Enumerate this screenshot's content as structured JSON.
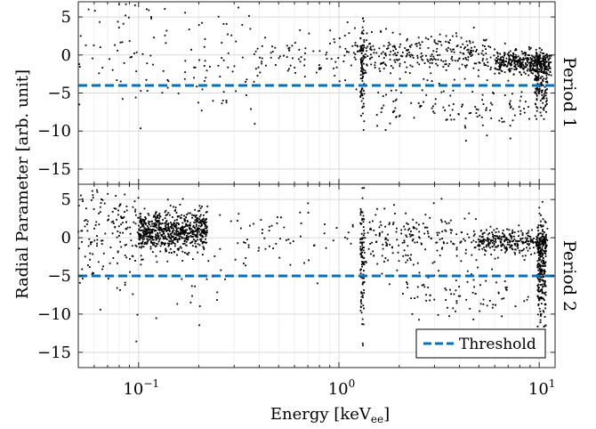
{
  "chart_data": {
    "type": "scatter",
    "xlabel": "Energy [keV",
    "xlabel_subscript": "ee",
    "xlabel_suffix": "]",
    "ylabel": "Radial Parameter [arb. unit]",
    "x_scale": "log",
    "xlim": [
      0.05,
      12
    ],
    "ylim": [
      -17,
      7
    ],
    "grid": true,
    "x_ticks": [
      {
        "value": 0.1,
        "base": "10",
        "exp": "−1"
      },
      {
        "value": 1,
        "base": "10",
        "exp": "0"
      },
      {
        "value": 10,
        "base": "10",
        "exp": "1"
      }
    ],
    "y_ticks": [
      5,
      0,
      -5,
      -10,
      -15
    ],
    "threshold_color": "#0072BD",
    "point_color": "#000000",
    "legend": {
      "label": "Threshold",
      "placement": "bottom-right"
    },
    "panels": [
      {
        "name": "Period 1",
        "threshold": -4,
        "clusters": [
          {
            "x_range": [
              0.05,
              0.4
            ],
            "y_mean": 0,
            "y_sd": 4,
            "count": 130
          },
          {
            "x_range": [
              0.4,
              1.2
            ],
            "y_mean": 0,
            "y_sd": 1.5,
            "count": 80
          },
          {
            "x_range": [
              1.2,
              6
            ],
            "y_mean": 0,
            "y_sd": 1.3,
            "count": 300
          },
          {
            "x_range": [
              1.5,
              9
            ],
            "y_mean": -7,
            "y_sd": 1.5,
            "count": 120
          },
          {
            "x_range": [
              6,
              11.5
            ],
            "y_mean": -1,
            "y_sd": 0.8,
            "count": 380
          },
          {
            "x_range": [
              9.5,
              11
            ],
            "y_mean": -4,
            "y_sd": 2.2,
            "count": 160
          },
          {
            "x_range": [
              1.28,
              1.34
            ],
            "y_mean": -2,
            "y_sd": 3,
            "count": 90
          }
        ]
      },
      {
        "name": "Period 2",
        "threshold": -5,
        "clusters": [
          {
            "x_range": [
              0.05,
              0.1
            ],
            "y_mean": 1,
            "y_sd": 3,
            "count": 120
          },
          {
            "x_range": [
              0.1,
              0.22
            ],
            "y_mean": 0.8,
            "y_sd": 1.3,
            "count": 700
          },
          {
            "x_range": [
              0.05,
              0.3
            ],
            "y_mean": -3,
            "y_sd": 5,
            "count": 70
          },
          {
            "x_range": [
              0.3,
              1.2
            ],
            "y_mean": 0,
            "y_sd": 1.8,
            "count": 60
          },
          {
            "x_range": [
              1.3,
              5
            ],
            "y_mean": 0,
            "y_sd": 1.8,
            "count": 200
          },
          {
            "x_range": [
              2,
              9
            ],
            "y_mean": -7,
            "y_sd": 2,
            "count": 80
          },
          {
            "x_range": [
              5,
              11
            ],
            "y_mean": -0.5,
            "y_sd": 0.8,
            "count": 300
          },
          {
            "x_range": [
              9.8,
              10.8
            ],
            "y_mean": -4,
            "y_sd": 3.5,
            "count": 260
          },
          {
            "x_range": [
              1.28,
              1.34
            ],
            "y_mean": -3,
            "y_sd": 4.5,
            "count": 100
          }
        ]
      }
    ]
  }
}
